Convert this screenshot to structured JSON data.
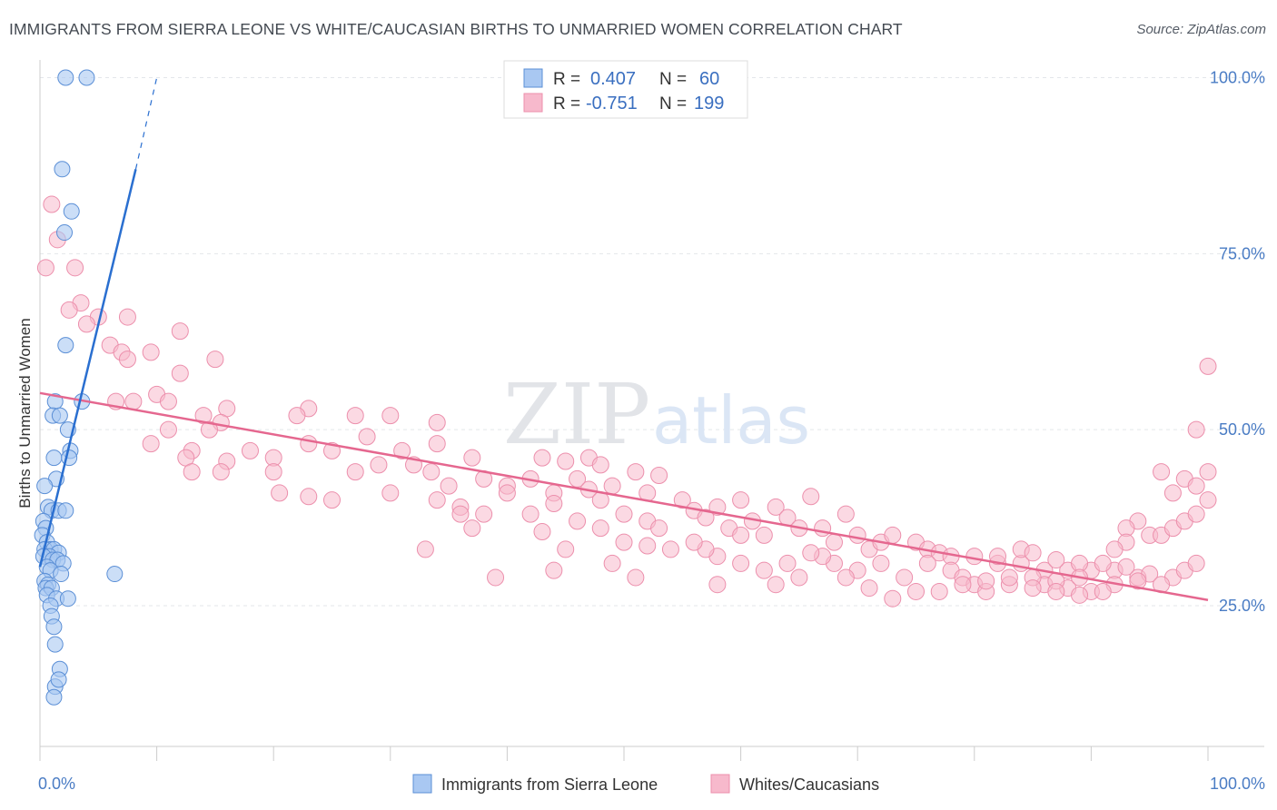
{
  "title": "IMMIGRANTS FROM SIERRA LEONE VS WHITE/CAUCASIAN BIRTHS TO UNMARRIED WOMEN CORRELATION CHART",
  "source": "Source: ZipAtlas.com",
  "watermark": {
    "zip": "ZIP",
    "atlas": "atlas"
  },
  "colors": {
    "blue": "#a9c8f2",
    "blue_stroke": "#5b8fd6",
    "blue_line": "#2a6fd0",
    "pink": "#f7b9cc",
    "pink_stroke": "#ec8fac",
    "pink_line": "#e5678f",
    "tick_text": "#4a7cc4"
  },
  "legend": {
    "rows": [
      {
        "r_label": "R =",
        "r_value": "0.407",
        "n_label": "N =",
        "n_value": "60"
      },
      {
        "r_label": "R =",
        "r_value": "-0.751",
        "n_label": "N =",
        "n_value": "199"
      }
    ]
  },
  "chart_data": {
    "type": "scatter",
    "title": "IMMIGRANTS FROM SIERRA LEONE VS WHITE/CAUCASIAN BIRTHS TO UNMARRIED WOMEN CORRELATION CHART",
    "xlabel": "",
    "ylabel": "Births to Unmarried Women",
    "xlim": [
      0,
      100
    ],
    "ylim": [
      5,
      102
    ],
    "x_tick_labels": [
      "0.0%",
      "100.0%"
    ],
    "y_ticks": [
      25,
      50,
      75,
      100
    ],
    "y_tick_labels": [
      "25.0%",
      "50.0%",
      "75.0%",
      "100.0%"
    ],
    "grid": true,
    "legend_position": "top-center",
    "series": [
      {
        "name": "Immigrants from Sierra Leone",
        "r": 0.407,
        "n": 60,
        "trend": {
          "x0": 0,
          "y0": 30.5,
          "x1": 8.2,
          "y1": 87.0,
          "dashed_to": {
            "x": 10,
            "y": 100
          }
        },
        "points": [
          [
            2.2,
            100
          ],
          [
            4,
            100
          ],
          [
            1.9,
            87
          ],
          [
            2.7,
            81
          ],
          [
            2.1,
            78
          ],
          [
            2.2,
            62
          ],
          [
            1.3,
            54
          ],
          [
            3.6,
            54
          ],
          [
            1.1,
            52
          ],
          [
            1.7,
            52
          ],
          [
            2.4,
            50
          ],
          [
            2.6,
            47
          ],
          [
            1.2,
            46
          ],
          [
            2.5,
            46
          ],
          [
            1.4,
            43
          ],
          [
            0.4,
            42
          ],
          [
            0.7,
            39
          ],
          [
            1.0,
            38.5
          ],
          [
            1.6,
            38.5
          ],
          [
            2.2,
            38.5
          ],
          [
            0.3,
            37
          ],
          [
            0.5,
            36
          ],
          [
            0.2,
            35
          ],
          [
            0.6,
            34
          ],
          [
            0.9,
            33
          ],
          [
            0.4,
            33
          ],
          [
            1.2,
            33
          ],
          [
            1.6,
            32.5
          ],
          [
            0.8,
            32
          ],
          [
            0.3,
            32
          ],
          [
            1.1,
            31.5
          ],
          [
            1.5,
            31.5
          ],
          [
            2.0,
            31
          ],
          [
            0.6,
            30.5
          ],
          [
            0.9,
            30
          ],
          [
            1.8,
            29.5
          ],
          [
            6.4,
            29.5
          ],
          [
            0.4,
            28.5
          ],
          [
            0.7,
            28
          ],
          [
            0.5,
            27.5
          ],
          [
            1.0,
            27.5
          ],
          [
            0.6,
            26.5
          ],
          [
            1.4,
            26
          ],
          [
            2.4,
            26
          ],
          [
            0.9,
            25
          ],
          [
            1.0,
            23.5
          ],
          [
            1.2,
            22
          ],
          [
            1.3,
            19.5
          ],
          [
            1.7,
            16
          ],
          [
            1.3,
            13.5
          ],
          [
            1.6,
            14.5
          ],
          [
            1.2,
            12
          ]
        ]
      },
      {
        "name": "Whites/Caucasians",
        "r": -0.751,
        "n": 199,
        "trend": {
          "x0": 0,
          "y0": 55.2,
          "x1": 100,
          "y1": 25.8
        },
        "points": [
          [
            1,
            82
          ],
          [
            1.5,
            77
          ],
          [
            0.5,
            73
          ],
          [
            3,
            73
          ],
          [
            3.5,
            68
          ],
          [
            2.5,
            67
          ],
          [
            5,
            66
          ],
          [
            7.5,
            66
          ],
          [
            4,
            65
          ],
          [
            12,
            64
          ],
          [
            6,
            62
          ],
          [
            7,
            61
          ],
          [
            9.5,
            61
          ],
          [
            15,
            60
          ],
          [
            7.5,
            60
          ],
          [
            12,
            58
          ],
          [
            10,
            55
          ],
          [
            11,
            54
          ],
          [
            8,
            54
          ],
          [
            6.5,
            54
          ],
          [
            16,
            53
          ],
          [
            23,
            53
          ],
          [
            14,
            52
          ],
          [
            15.5,
            51
          ],
          [
            22,
            52
          ],
          [
            30,
            52
          ],
          [
            27,
            52
          ],
          [
            34,
            51
          ],
          [
            11,
            50
          ],
          [
            14.5,
            50
          ],
          [
            23,
            48
          ],
          [
            9.5,
            48
          ],
          [
            25,
            47
          ],
          [
            18,
            47
          ],
          [
            28,
            49
          ],
          [
            34,
            48
          ],
          [
            31,
            47
          ],
          [
            13,
            47
          ],
          [
            12.5,
            46
          ],
          [
            20,
            46
          ],
          [
            16,
            45.5
          ],
          [
            29,
            45
          ],
          [
            32,
            45
          ],
          [
            37,
            46
          ],
          [
            43,
            46
          ],
          [
            45,
            45.5
          ],
          [
            47,
            46
          ],
          [
            48,
            45
          ],
          [
            33.5,
            44
          ],
          [
            27,
            44
          ],
          [
            20,
            44
          ],
          [
            15.5,
            44
          ],
          [
            13,
            44
          ],
          [
            38,
            43
          ],
          [
            42,
            43
          ],
          [
            46,
            43
          ],
          [
            51,
            44
          ],
          [
            53,
            43.5
          ],
          [
            35,
            42
          ],
          [
            40,
            42
          ],
          [
            44,
            41
          ],
          [
            47,
            41.5
          ],
          [
            49,
            42
          ],
          [
            40,
            41
          ],
          [
            52,
            41
          ],
          [
            20.5,
            41
          ],
          [
            23,
            40.5
          ],
          [
            30,
            41
          ],
          [
            34,
            40
          ],
          [
            25,
            40
          ],
          [
            48,
            40
          ],
          [
            36,
            39
          ],
          [
            55,
            40
          ],
          [
            58,
            39
          ],
          [
            60,
            40
          ],
          [
            63,
            39
          ],
          [
            66,
            40.5
          ],
          [
            69,
            38
          ],
          [
            38,
            38
          ],
          [
            42,
            38
          ],
          [
            44,
            39.5
          ],
          [
            46,
            37
          ],
          [
            50,
            38
          ],
          [
            52,
            37
          ],
          [
            56,
            38.5
          ],
          [
            57,
            37.5
          ],
          [
            61,
            37
          ],
          [
            64,
            37.5
          ],
          [
            59,
            36
          ],
          [
            37,
            36
          ],
          [
            48,
            36
          ],
          [
            53,
            36
          ],
          [
            43,
            35.5
          ],
          [
            60,
            35
          ],
          [
            62,
            35
          ],
          [
            65,
            36
          ],
          [
            67,
            36
          ],
          [
            68,
            34
          ],
          [
            70,
            35
          ],
          [
            71,
            33
          ],
          [
            72,
            34
          ],
          [
            73,
            35
          ],
          [
            75,
            34
          ],
          [
            76,
            33
          ],
          [
            77,
            32.5
          ],
          [
            78,
            32
          ],
          [
            80,
            32
          ],
          [
            82,
            31
          ],
          [
            84,
            31
          ],
          [
            86,
            30
          ],
          [
            88,
            30
          ],
          [
            90,
            30
          ],
          [
            92,
            30
          ],
          [
            94,
            29
          ],
          [
            95,
            29.5
          ],
          [
            97,
            29
          ],
          [
            98,
            30
          ],
          [
            99,
            31
          ],
          [
            82,
            32
          ],
          [
            84,
            33
          ],
          [
            85,
            32.5
          ],
          [
            87,
            31.5
          ],
          [
            89,
            31
          ],
          [
            91,
            31
          ],
          [
            93,
            30.5
          ],
          [
            86,
            28
          ],
          [
            88,
            27.5
          ],
          [
            90,
            27
          ],
          [
            92,
            28
          ],
          [
            94,
            28.5
          ],
          [
            96,
            28
          ],
          [
            74,
            29
          ],
          [
            76,
            31
          ],
          [
            78,
            30
          ],
          [
            79,
            29
          ],
          [
            80,
            28
          ],
          [
            81,
            27
          ],
          [
            83,
            28
          ],
          [
            85,
            29
          ],
          [
            87,
            28.5
          ],
          [
            89,
            29
          ],
          [
            72,
            31
          ],
          [
            70,
            30
          ],
          [
            68,
            31
          ],
          [
            67,
            32
          ],
          [
            66,
            32.5
          ],
          [
            64,
            31
          ],
          [
            62,
            30
          ],
          [
            60,
            31
          ],
          [
            58,
            32
          ],
          [
            57,
            33
          ],
          [
            56,
            34
          ],
          [
            54,
            33
          ],
          [
            52,
            33.5
          ],
          [
            50,
            34
          ],
          [
            44,
            30
          ],
          [
            51,
            29
          ],
          [
            39,
            29
          ],
          [
            45,
            33
          ],
          [
            49,
            31
          ],
          [
            63,
            28
          ],
          [
            58,
            28
          ],
          [
            65,
            29
          ],
          [
            69,
            29
          ],
          [
            71,
            27.5
          ],
          [
            73,
            26
          ],
          [
            75,
            27
          ],
          [
            77,
            27
          ],
          [
            79,
            28
          ],
          [
            81,
            28.5
          ],
          [
            83,
            29
          ],
          [
            85,
            27.5
          ],
          [
            87,
            27
          ],
          [
            89,
            26.5
          ],
          [
            91,
            27
          ],
          [
            94,
            37
          ],
          [
            95,
            35
          ],
          [
            96,
            35
          ],
          [
            97,
            36
          ],
          [
            98,
            37
          ],
          [
            99,
            38
          ],
          [
            100,
            40
          ],
          [
            93,
            36
          ],
          [
            93,
            34
          ],
          [
            92,
            33
          ],
          [
            96,
            44
          ],
          [
            98,
            43
          ],
          [
            99,
            42
          ],
          [
            100,
            44
          ],
          [
            97,
            41
          ],
          [
            99,
            50
          ],
          [
            100,
            59
          ],
          [
            33,
            33
          ],
          [
            36,
            38
          ]
        ]
      }
    ]
  },
  "bottom_legend": [
    {
      "label": "Immigrants from Sierra Leone"
    },
    {
      "label": "Whites/Caucasians"
    }
  ]
}
